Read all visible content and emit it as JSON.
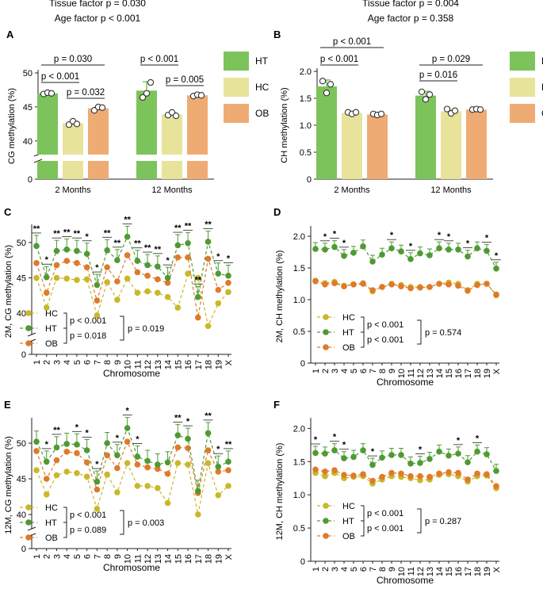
{
  "header": {
    "left": {
      "tissue": "Tissue factor p = 0.030",
      "age": "Age factor p < 0.001"
    },
    "right": {
      "tissue": "Tissue factor p = 0.004",
      "age": "Age factor p = 0.358"
    }
  },
  "colors": {
    "HT": "#7cc35b",
    "HC": "#e8e39b",
    "OB": "#efab74",
    "HT_line": "#4f9a33",
    "HC_line": "#c9b828",
    "OB_line": "#df7a2a"
  },
  "chart_data": [
    {
      "panel": "A",
      "type": "bar",
      "ylabel": "CG methylation (%)",
      "categories": [
        "2 Months",
        "12 Months"
      ],
      "ylim": [
        0,
        50
      ],
      "axis_break": [
        5,
        38
      ],
      "yticks": [
        "0",
        "40",
        "45",
        "50"
      ],
      "series": [
        {
          "name": "HT",
          "values": [
            47.0,
            47.4
          ],
          "err": [
            0,
            1.3
          ],
          "points": [
            [
              46.9,
              47.1,
              47.0
            ],
            [
              46.4,
              47.0,
              48.6
            ]
          ]
        },
        {
          "name": "HC",
          "values": [
            42.6,
            43.9
          ],
          "err": [
            0.2,
            0.3
          ],
          "points": [
            [
              42.4,
              42.9,
              42.5
            ],
            [
              43.8,
              44.2,
              43.7
            ]
          ]
        },
        {
          "name": "OB",
          "values": [
            44.8,
            46.7
          ],
          "err": [
            0.2,
            0.1
          ],
          "points": [
            [
              44.5,
              45.0,
              44.9
            ],
            [
              46.6,
              46.8,
              46.7
            ]
          ]
        }
      ],
      "comparisons": [
        {
          "label": "p = 0.030",
          "group": 0,
          "from": "HT",
          "to": "OB"
        },
        {
          "label": "p < 0.001",
          "group": 0,
          "from": "HT",
          "to": "HC"
        },
        {
          "label": "p = 0.032",
          "group": 0,
          "from": "HC",
          "to": "OB"
        },
        {
          "label": "p < 0.001",
          "group": 1,
          "from": "HT",
          "to": "HC"
        },
        {
          "label": "p = 0.005",
          "group": 1,
          "from": "HC",
          "to": "OB"
        }
      ],
      "legend": [
        "HT",
        "HC",
        "OB"
      ]
    },
    {
      "panel": "B",
      "type": "bar",
      "ylabel": "CH methylation (%)",
      "categories": [
        "2 Months",
        "12 Months"
      ],
      "ylim": [
        0,
        2.0
      ],
      "yticks": [
        "0",
        "0.5",
        "1.0",
        "1.5",
        "2.0"
      ],
      "series": [
        {
          "name": "HT",
          "values": [
            1.72,
            1.55
          ],
          "err": [
            0.12,
            0.08
          ],
          "points": [
            [
              1.82,
              1.6,
              1.76
            ],
            [
              1.62,
              1.48,
              1.57
            ]
          ]
        },
        {
          "name": "HC",
          "values": [
            1.23,
            1.26
          ],
          "err": [
            0.02,
            0.04
          ],
          "points": [
            [
              1.24,
              1.21,
              1.24
            ],
            [
              1.3,
              1.22,
              1.27
            ]
          ]
        },
        {
          "name": "OB",
          "values": [
            1.2,
            1.29
          ],
          "err": [
            0.02,
            0.01
          ],
          "points": [
            [
              1.21,
              1.19,
              1.21
            ],
            [
              1.29,
              1.3,
              1.29
            ]
          ]
        }
      ],
      "comparisons": [
        {
          "label": "p < 0.001",
          "group": 0,
          "from": "HT",
          "to": "OB"
        },
        {
          "label": "p < 0.001",
          "group": 0,
          "from": "HT",
          "to": "HC"
        },
        {
          "label": "p = 0.029",
          "group": 1,
          "from": "HT",
          "to": "OB"
        },
        {
          "label": "p = 0.016",
          "group": 1,
          "from": "HT",
          "to": "HC"
        }
      ],
      "legend": [
        "HT",
        "HC",
        "OB"
      ]
    },
    {
      "panel": "C",
      "type": "line",
      "ylabel": "2M, CG methylation (%)",
      "xlabel": "Chromosome",
      "x": [
        "1",
        "2",
        "3",
        "4",
        "5",
        "6",
        "7",
        "8",
        "9",
        "10",
        "11",
        "12",
        "13",
        "14",
        "15",
        "16",
        "17",
        "18",
        "19",
        "X"
      ],
      "ylim": [
        0,
        52
      ],
      "axis_break": [
        5,
        37
      ],
      "yticks": [
        "0",
        "40",
        "45",
        "50"
      ],
      "series": [
        {
          "name": "HC",
          "values": [
            45.0,
            40.8,
            45.0,
            44.9,
            44.7,
            44.8,
            39.7,
            44.4,
            41.9,
            44.9,
            42.9,
            43.1,
            42.9,
            42.3,
            40.8,
            45.6,
            45.0,
            38.2,
            41.4,
            43.0
          ]
        },
        {
          "name": "HT",
          "values": [
            49.5,
            45.1,
            48.8,
            49.0,
            48.8,
            48.4,
            44.0,
            48.9,
            47.5,
            50.8,
            47.4,
            46.8,
            46.6,
            45.0,
            49.6,
            49.9,
            42.3,
            50.1,
            45.6,
            45.3
          ]
        },
        {
          "name": "OB",
          "values": [
            47.1,
            42.9,
            46.8,
            47.4,
            47.1,
            46.5,
            41.8,
            46.5,
            44.5,
            48.2,
            45.8,
            45.3,
            44.8,
            44.3,
            47.9,
            47.9,
            39.4,
            47.7,
            43.3,
            44.3
          ]
        }
      ],
      "stars": [
        "**",
        "*",
        "**",
        "**",
        "**",
        "*",
        "*",
        "**",
        "**",
        "**",
        "**",
        "**",
        "**",
        "*",
        "**",
        "**",
        "**",
        "**",
        "*",
        "*"
      ],
      "tests": {
        "top": "p < 0.001",
        "bottom": "p = 0.018",
        "overall": "p = 0.019"
      },
      "legend": [
        "HC",
        "HT",
        "OB"
      ]
    },
    {
      "panel": "D",
      "type": "line",
      "ylabel": "2M, CH methylation (%)",
      "xlabel": "Chromosome",
      "x": [
        "1",
        "2",
        "3",
        "4",
        "5",
        "6",
        "7",
        "8",
        "9",
        "10",
        "11",
        "12",
        "13",
        "14",
        "15",
        "16",
        "17",
        "18",
        "19",
        "X"
      ],
      "ylim": [
        0,
        2.1
      ],
      "yticks": [
        "0",
        "0.5",
        "1.0",
        "1.5",
        "2.0"
      ],
      "series": [
        {
          "name": "HC",
          "values": [
            1.3,
            1.26,
            1.28,
            1.22,
            1.24,
            1.26,
            1.13,
            1.2,
            1.25,
            1.23,
            1.2,
            1.2,
            1.2,
            1.25,
            1.27,
            1.25,
            1.15,
            1.25,
            1.25,
            1.07
          ]
        },
        {
          "name": "HT",
          "values": [
            1.8,
            1.79,
            1.83,
            1.69,
            1.74,
            1.84,
            1.6,
            1.71,
            1.81,
            1.76,
            1.64,
            1.73,
            1.7,
            1.81,
            1.79,
            1.79,
            1.68,
            1.81,
            1.77,
            1.49
          ]
        },
        {
          "name": "OB",
          "values": [
            1.29,
            1.24,
            1.26,
            1.21,
            1.24,
            1.25,
            1.15,
            1.2,
            1.24,
            1.21,
            1.18,
            1.19,
            1.2,
            1.25,
            1.24,
            1.22,
            1.14,
            1.23,
            1.25,
            1.08
          ]
        }
      ],
      "stars": [
        "",
        "*",
        "*",
        "*",
        "",
        "",
        "",
        "",
        "*",
        "",
        "*",
        "",
        "",
        "*",
        "*",
        "",
        "*",
        "",
        "*",
        "*"
      ],
      "tests": {
        "top": "p < 0.001",
        "bottom": "p < 0.001",
        "overall": "p = 0.574"
      },
      "legend": [
        "HC",
        "HT",
        "OB"
      ]
    },
    {
      "panel": "E",
      "type": "line",
      "ylabel": "12M, CG methylation (%)",
      "xlabel": "Chromosome",
      "x": [
        "1",
        "2",
        "3",
        "4",
        "5",
        "6",
        "7",
        "8",
        "9",
        "10",
        "11",
        "12",
        "13",
        "14",
        "15",
        "16",
        "17",
        "18",
        "19",
        "X"
      ],
      "ylim": [
        0,
        53
      ],
      "axis_break": [
        5,
        38
      ],
      "yticks": [
        "0",
        "40",
        "45",
        "50"
      ],
      "series": [
        {
          "name": "HC",
          "values": [
            46.2,
            42.8,
            45.5,
            46.0,
            45.8,
            45.3,
            40.8,
            45.6,
            43.1,
            47.2,
            44.0,
            44.0,
            43.7,
            41.6,
            47.2,
            47.0,
            40.0,
            47.2,
            42.7,
            44.0
          ]
        },
        {
          "name": "HT",
          "values": [
            50.2,
            47.4,
            49.4,
            49.9,
            49.8,
            49.0,
            44.6,
            50.0,
            48.3,
            52.1,
            48.1,
            47.5,
            47.0,
            47.3,
            51.1,
            50.6,
            43.3,
            51.4,
            46.7,
            47.4
          ]
        },
        {
          "name": "OB",
          "values": [
            48.9,
            45.0,
            47.6,
            48.8,
            48.6,
            47.3,
            43.5,
            48.3,
            46.5,
            50.2,
            47.0,
            46.6,
            46.4,
            45.7,
            49.4,
            49.3,
            43.0,
            49.0,
            46.0,
            46.2
          ]
        }
      ],
      "stars": [
        "",
        "*",
        "**",
        "",
        "*",
        "*",
        "*",
        "",
        "*",
        "*",
        "*",
        "",
        "",
        "",
        "**",
        "*",
        "",
        "**",
        "*",
        "**"
      ],
      "tests": {
        "top": "p < 0.001",
        "bottom": "p = 0.089",
        "overall": "p = 0.003"
      },
      "legend": [
        "HC",
        "HT",
        "OB"
      ]
    },
    {
      "panel": "F",
      "type": "line",
      "ylabel": "12M, CH methylation (%)",
      "xlabel": "Chromosome",
      "x": [
        "1",
        "2",
        "3",
        "4",
        "5",
        "6",
        "7",
        "8",
        "9",
        "10",
        "11",
        "12",
        "13",
        "14",
        "15",
        "16",
        "17",
        "18",
        "19",
        "X"
      ],
      "ylim": [
        0,
        2.1
      ],
      "yticks": [
        "0",
        "0.5",
        "1.0",
        "1.5",
        "2.0"
      ],
      "series": [
        {
          "name": "HC",
          "values": [
            1.33,
            1.28,
            1.33,
            1.25,
            1.27,
            1.28,
            1.17,
            1.23,
            1.28,
            1.27,
            1.25,
            1.22,
            1.23,
            1.3,
            1.31,
            1.28,
            1.2,
            1.28,
            1.29,
            1.1
          ]
        },
        {
          "name": "HT",
          "values": [
            1.63,
            1.62,
            1.67,
            1.55,
            1.57,
            1.67,
            1.45,
            1.56,
            1.6,
            1.6,
            1.47,
            1.48,
            1.54,
            1.65,
            1.59,
            1.62,
            1.49,
            1.65,
            1.61,
            1.36
          ]
        },
        {
          "name": "OB",
          "values": [
            1.38,
            1.35,
            1.37,
            1.3,
            1.29,
            1.31,
            1.21,
            1.27,
            1.33,
            1.32,
            1.28,
            1.28,
            1.27,
            1.32,
            1.34,
            1.33,
            1.23,
            1.32,
            1.31,
            1.13
          ]
        }
      ],
      "stars": [
        "*",
        "",
        "*",
        "*",
        "",
        "",
        "*",
        "",
        "",
        "",
        "",
        "*",
        "",
        "",
        "",
        "*",
        "",
        "*",
        "",
        ""
      ],
      "tests": {
        "top": "p < 0.001",
        "bottom": "p < 0.001",
        "overall": "p = 0.287"
      },
      "legend": [
        "HC",
        "HT",
        "OB"
      ]
    }
  ]
}
